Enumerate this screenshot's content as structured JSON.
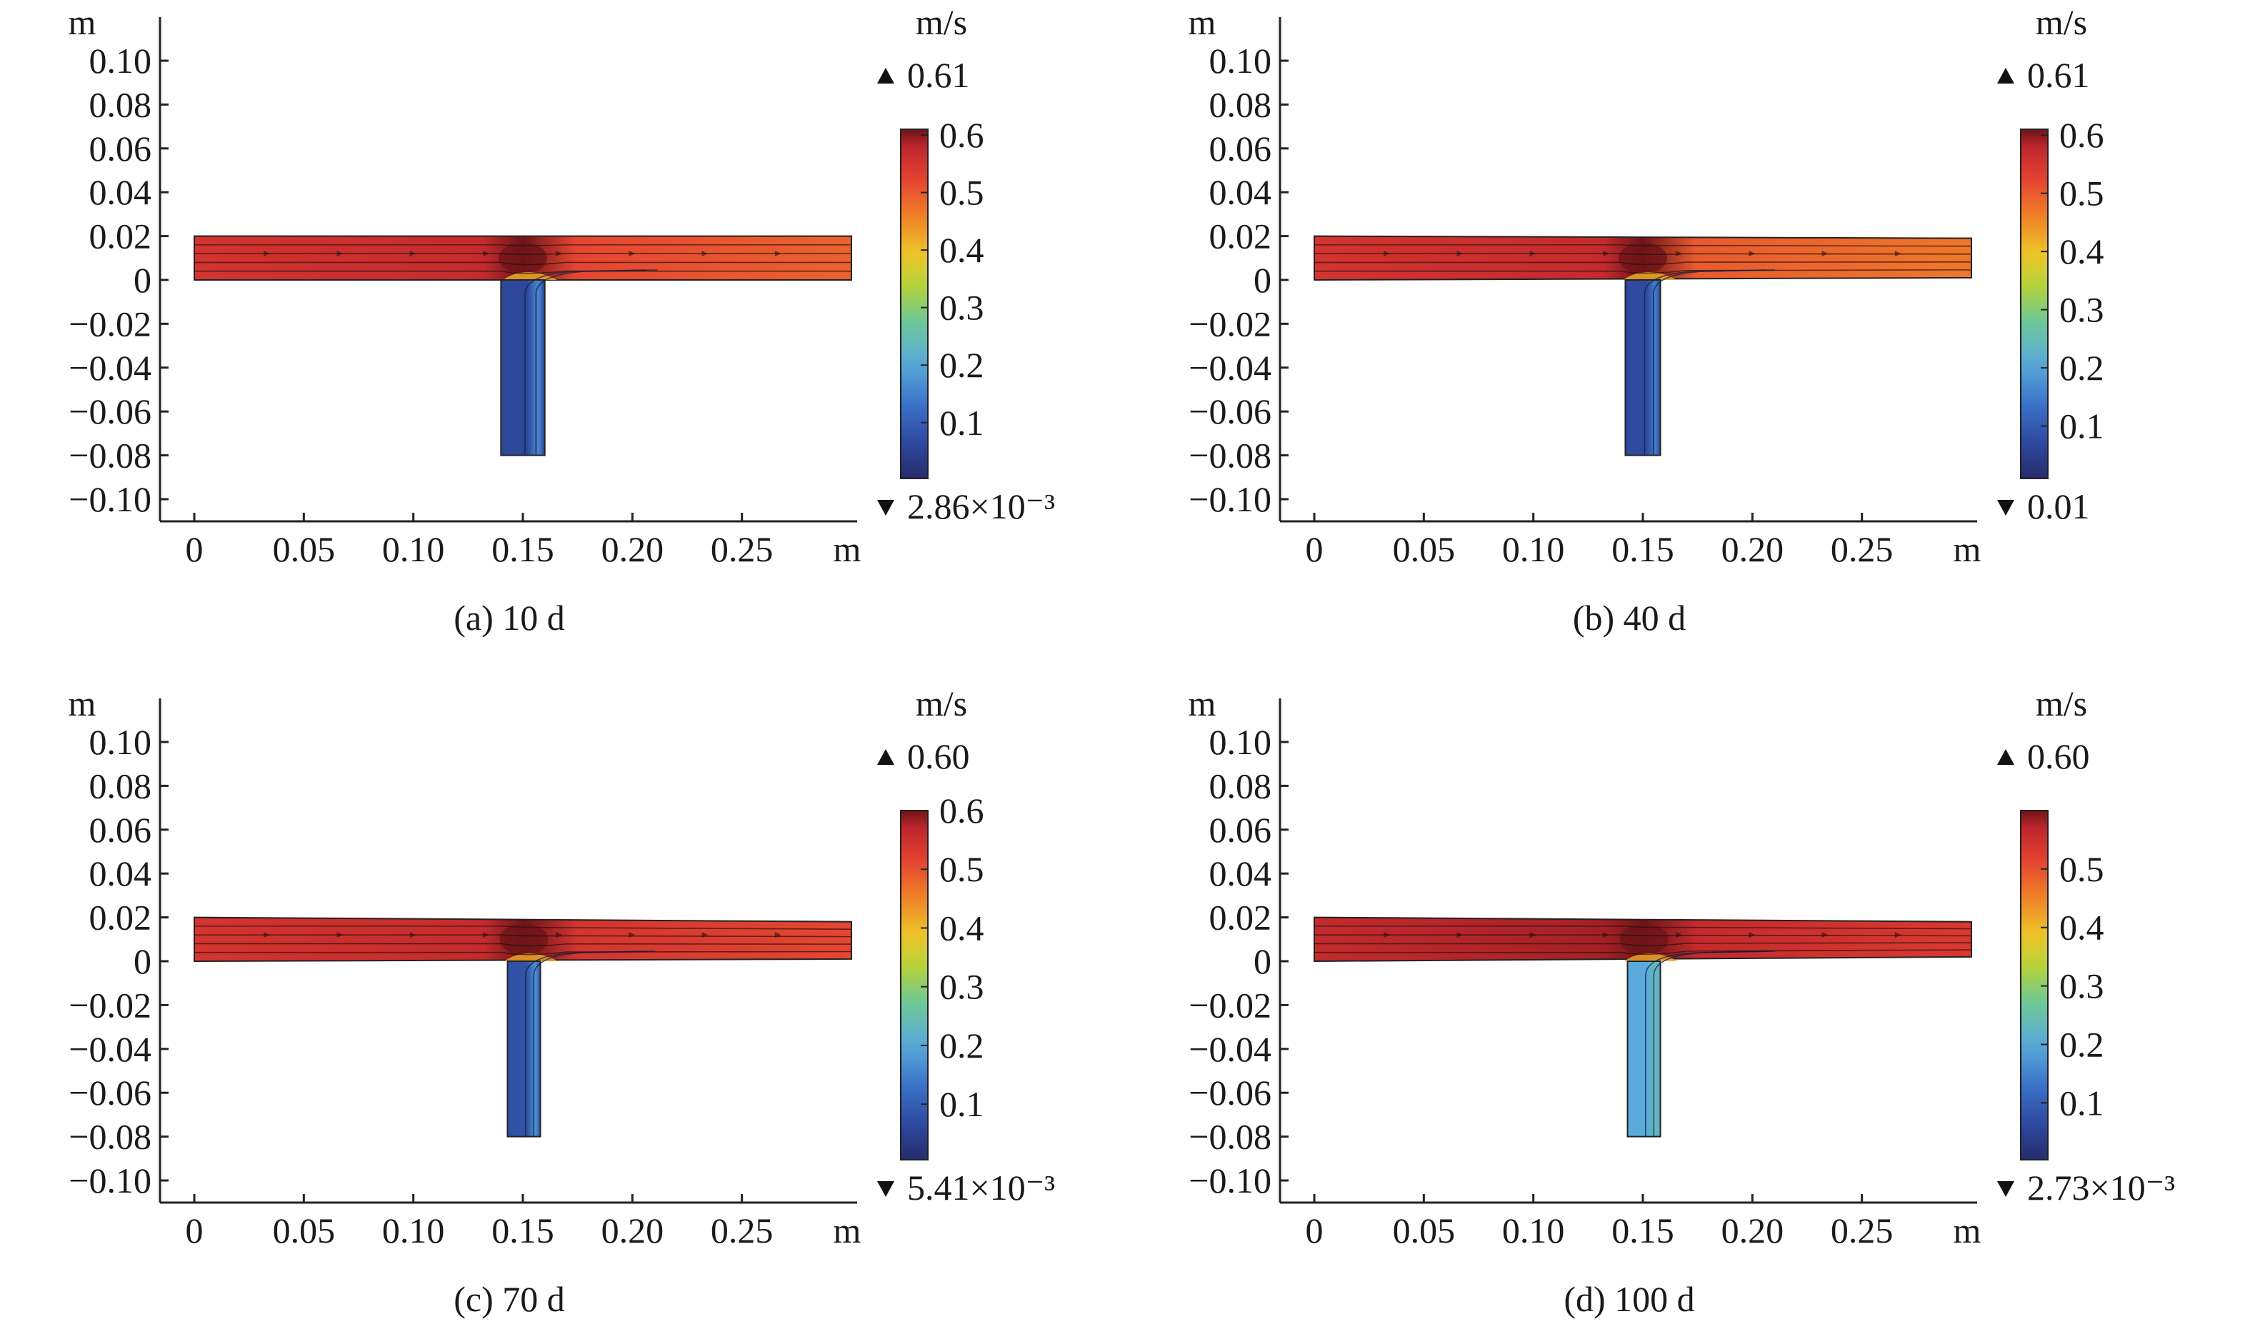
{
  "chart_data": [
    {
      "type": "heatmap",
      "caption": "(a) 10 d",
      "x_unit": "m",
      "y_unit": "m",
      "x_ticks": [
        "0",
        "0.05",
        "0.10",
        "0.15",
        "0.20",
        "0.25"
      ],
      "x_tick_values": [
        0,
        0.05,
        0.1,
        0.15,
        0.2,
        0.25
      ],
      "y_ticks": [
        "0.10",
        "0.08",
        "0.06",
        "0.04",
        "0.02",
        "0",
        "−0.02",
        "−0.04",
        "−0.06",
        "−0.08",
        "−0.10"
      ],
      "y_tick_values": [
        0.1,
        0.08,
        0.06,
        0.04,
        0.02,
        0,
        -0.02,
        -0.04,
        -0.06,
        -0.08,
        -0.1
      ],
      "xlim": [
        -0.015,
        0.3
      ],
      "ylim": [
        -0.11,
        0.12
      ],
      "colorbar": {
        "unit": "m/s",
        "max_label": "0.61",
        "min_label": "2.86×10⁻³",
        "max_value": 0.61,
        "min_value": 0.00286,
        "ticks": [
          "0.6",
          "0.5",
          "0.4",
          "0.3",
          "0.2",
          "0.1"
        ],
        "tick_values": [
          0.6,
          0.5,
          0.4,
          0.3,
          0.2,
          0.1
        ]
      },
      "geometry": {
        "main_channel": {
          "x": [
            0,
            0.3
          ],
          "y_left": [
            0,
            0.02
          ],
          "y_right": [
            0,
            0.02
          ]
        },
        "branch": {
          "x": [
            0.14,
            0.16
          ],
          "y": [
            -0.08,
            0
          ]
        }
      },
      "velocity": {
        "main_left": 0.55,
        "main_right": 0.49,
        "junction_peak": 0.61,
        "branch": 0.06,
        "branch_edge": 0.16
      }
    },
    {
      "type": "heatmap",
      "caption": "(b) 40 d",
      "x_unit": "m",
      "y_unit": "m",
      "x_ticks": [
        "0",
        "0.05",
        "0.10",
        "0.15",
        "0.20",
        "0.25"
      ],
      "x_tick_values": [
        0,
        0.05,
        0.1,
        0.15,
        0.2,
        0.25
      ],
      "y_ticks": [
        "0.10",
        "0.08",
        "0.06",
        "0.04",
        "0.02",
        "0",
        "−0.02",
        "−0.04",
        "−0.06",
        "−0.08",
        "−0.10"
      ],
      "y_tick_values": [
        0.1,
        0.08,
        0.06,
        0.04,
        0.02,
        0,
        -0.02,
        -0.04,
        -0.06,
        -0.08,
        -0.1
      ],
      "xlim": [
        -0.015,
        0.3
      ],
      "ylim": [
        -0.11,
        0.12
      ],
      "colorbar": {
        "unit": "m/s",
        "max_label": "0.61",
        "min_label": "0.01",
        "max_value": 0.61,
        "min_value": 0.01,
        "ticks": [
          "0.6",
          "0.5",
          "0.4",
          "0.3",
          "0.2",
          "0.1"
        ],
        "tick_values": [
          0.6,
          0.5,
          0.4,
          0.3,
          0.2,
          0.1
        ]
      },
      "geometry": {
        "main_channel": {
          "x": [
            0,
            0.3
          ],
          "y_left": [
            0,
            0.02
          ],
          "y_right": [
            0.001,
            0.019
          ]
        },
        "branch": {
          "x": [
            0.142,
            0.158
          ],
          "y": [
            -0.08,
            0
          ]
        }
      },
      "velocity": {
        "main_left": 0.55,
        "main_right": 0.47,
        "junction_peak": 0.61,
        "branch": 0.07,
        "branch_edge": 0.15
      }
    },
    {
      "type": "heatmap",
      "caption": "(c) 70 d",
      "x_unit": "m",
      "y_unit": "m",
      "x_ticks": [
        "0",
        "0.05",
        "0.10",
        "0.15",
        "0.20",
        "0.25"
      ],
      "x_tick_values": [
        0,
        0.05,
        0.1,
        0.15,
        0.2,
        0.25
      ],
      "y_ticks": [
        "0.10",
        "0.08",
        "0.06",
        "0.04",
        "0.02",
        "0",
        "−0.02",
        "−0.04",
        "−0.06",
        "−0.08",
        "−0.10"
      ],
      "y_tick_values": [
        0.1,
        0.08,
        0.06,
        0.04,
        0.02,
        0,
        -0.02,
        -0.04,
        -0.06,
        -0.08,
        -0.1
      ],
      "xlim": [
        -0.015,
        0.3
      ],
      "ylim": [
        -0.11,
        0.12
      ],
      "colorbar": {
        "unit": "m/s",
        "max_label": "0.60",
        "min_label": "5.41×10⁻³",
        "max_value": 0.6,
        "min_value": 0.00541,
        "ticks": [
          "0.6",
          "0.5",
          "0.4",
          "0.3",
          "0.2",
          "0.1"
        ],
        "tick_values": [
          0.6,
          0.5,
          0.4,
          0.3,
          0.2,
          0.1
        ]
      },
      "geometry": {
        "main_channel": {
          "x": [
            0,
            0.3
          ],
          "y_left": [
            0,
            0.02
          ],
          "y_right": [
            0.001,
            0.018
          ]
        },
        "branch": {
          "x": [
            0.143,
            0.158
          ],
          "y": [
            -0.08,
            0
          ]
        }
      },
      "velocity": {
        "main_left": 0.54,
        "main_right": 0.51,
        "junction_peak": 0.6,
        "branch": 0.08,
        "branch_edge": 0.17
      }
    },
    {
      "type": "heatmap",
      "caption": "(d) 100 d",
      "x_unit": "m",
      "y_unit": "m",
      "x_ticks": [
        "0",
        "0.05",
        "0.10",
        "0.15",
        "0.20",
        "0.25"
      ],
      "x_tick_values": [
        0,
        0.05,
        0.1,
        0.15,
        0.2,
        0.25
      ],
      "y_ticks": [
        "0.10",
        "0.08",
        "0.06",
        "0.04",
        "0.02",
        "0",
        "−0.02",
        "−0.04",
        "−0.06",
        "−0.08",
        "−0.10"
      ],
      "y_tick_values": [
        0.1,
        0.08,
        0.06,
        0.04,
        0.02,
        0,
        -0.02,
        -0.04,
        -0.06,
        -0.08,
        -0.1
      ],
      "xlim": [
        -0.015,
        0.3
      ],
      "ylim": [
        -0.11,
        0.12
      ],
      "colorbar": {
        "unit": "m/s",
        "max_label": "0.60",
        "min_label": "2.73×10⁻³",
        "max_value": 0.6,
        "min_value": 0.00273,
        "ticks": [
          "0.5",
          "0.4",
          "0.3",
          "0.2",
          "0.1"
        ],
        "tick_values": [
          0.5,
          0.4,
          0.3,
          0.2,
          0.1
        ]
      },
      "geometry": {
        "main_channel": {
          "x": [
            0,
            0.3
          ],
          "y_left": [
            0,
            0.02
          ],
          "y_right": [
            0.002,
            0.018
          ]
        },
        "branch": {
          "x": [
            0.143,
            0.158
          ],
          "y": [
            -0.08,
            0
          ]
        }
      },
      "velocity": {
        "main_left": 0.56,
        "main_right": 0.53,
        "junction_peak": 0.6,
        "branch": 0.2,
        "branch_edge": 0.24
      }
    }
  ]
}
